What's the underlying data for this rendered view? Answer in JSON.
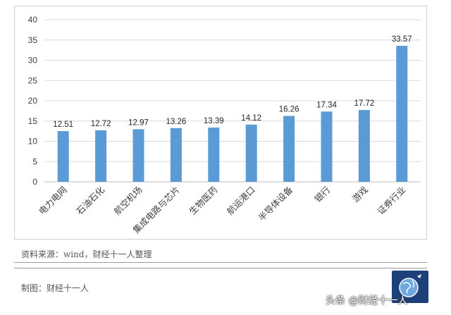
{
  "chart_data": {
    "type": "bar",
    "categories": [
      "电力电网",
      "石油石化",
      "航空机场",
      "集成电路与芯片",
      "生物医药",
      "航运港口",
      "半导体设备",
      "银行",
      "游戏",
      "证券行业"
    ],
    "values": [
      12.51,
      12.72,
      12.97,
      13.26,
      13.39,
      14.12,
      16.26,
      17.34,
      17.72,
      33.57
    ],
    "value_labels": [
      "12.51",
      "12.72",
      "12.97",
      "13.26",
      "13.39",
      "14.12",
      "16.26",
      "17.34",
      "17.72",
      "33.57"
    ],
    "ylim": [
      0,
      40
    ],
    "yticks": [
      "0",
      "5",
      "10",
      "15",
      "20",
      "25",
      "30",
      "35",
      "40"
    ],
    "grid": true,
    "bar_color": "#5b9bd5"
  },
  "source_text": "资料来源：wind，财经十一人整理",
  "maker_text": "制图：财经十一人",
  "watermark_text": "头条 @财经十一人",
  "logo_icon": "globe-icon"
}
